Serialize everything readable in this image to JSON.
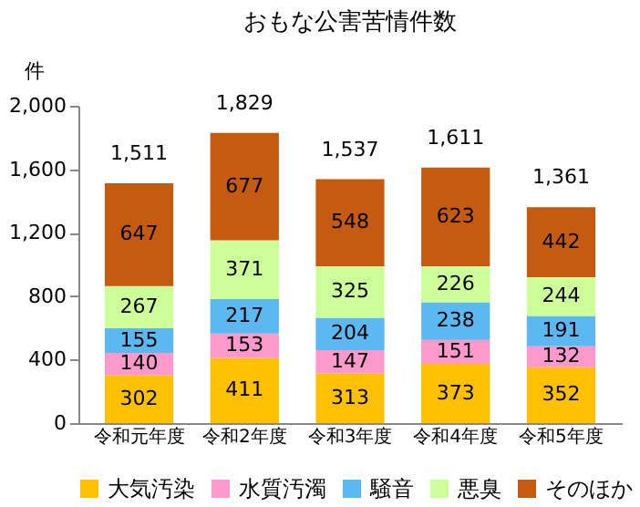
{
  "chart_data": {
    "type": "bar",
    "title": "おもな公害苦情件数",
    "ylabel": "件",
    "stacked": true,
    "data_labels": true,
    "legend": "bottom",
    "categories": [
      "令和元年度",
      "令和2年度",
      "令和3年度",
      "令和4年度",
      "令和5年度"
    ],
    "series": [
      {
        "name": "大気汚染",
        "color": "#ffc000",
        "values": [
          302,
          411,
          313,
          373,
          352
        ]
      },
      {
        "name": "水質汚濁",
        "color": "#ff99cc",
        "values": [
          140,
          153,
          147,
          151,
          132
        ]
      },
      {
        "name": "騒音",
        "color": "#5cb8f0",
        "values": [
          155,
          217,
          204,
          238,
          191
        ]
      },
      {
        "name": "悪臭",
        "color": "#ccff99",
        "values": [
          267,
          371,
          325,
          226,
          244
        ]
      },
      {
        "name": "そのほか",
        "color": "#c55a11",
        "values": [
          647,
          677,
          548,
          623,
          442
        ]
      }
    ],
    "totals": [
      "1,511",
      "1,829",
      "1,537",
      "1,611",
      "1,361"
    ],
    "ylim": [
      0,
      2000
    ],
    "yticks": [
      {
        "value": 0,
        "label": "0"
      },
      {
        "value": 400,
        "label": "400"
      },
      {
        "value": 800,
        "label": "800"
      },
      {
        "value": 1200,
        "label": "1,200"
      },
      {
        "value": 1600,
        "label": "1,600"
      },
      {
        "value": 2000,
        "label": "2,000"
      }
    ]
  }
}
